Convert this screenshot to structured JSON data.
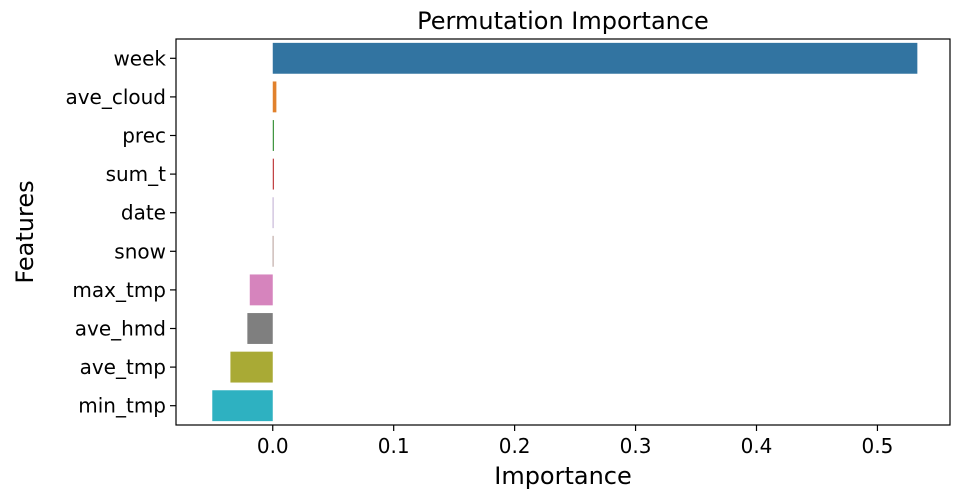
{
  "chart_data": {
    "type": "bar",
    "orientation": "horizontal",
    "title": "Permutation Importance",
    "xlabel": "Importance",
    "ylabel": "Features",
    "categories": [
      "week",
      "ave_cloud",
      "prec",
      "sum_t",
      "date",
      "snow",
      "max_tmp",
      "ave_hmd",
      "ave_tmp",
      "min_tmp"
    ],
    "values": [
      0.533,
      0.003,
      0.001,
      0.001,
      0.0,
      0.0,
      -0.019,
      -0.021,
      -0.035,
      -0.05
    ],
    "colors": [
      "#3274a1",
      "#e1812c",
      "#3a923a",
      "#c03d3e",
      "#9372b2",
      "#845b53",
      "#d684bd",
      "#7f7f7f",
      "#a9aa35",
      "#2eb1c1"
    ],
    "xlim": [
      -0.08,
      0.56
    ],
    "xticks": [
      0.0,
      0.1,
      0.2,
      0.3,
      0.4,
      0.5
    ],
    "xtick_labels": [
      "0.0",
      "0.1",
      "0.2",
      "0.3",
      "0.4",
      "0.5"
    ],
    "grid": false,
    "legend": "none"
  }
}
